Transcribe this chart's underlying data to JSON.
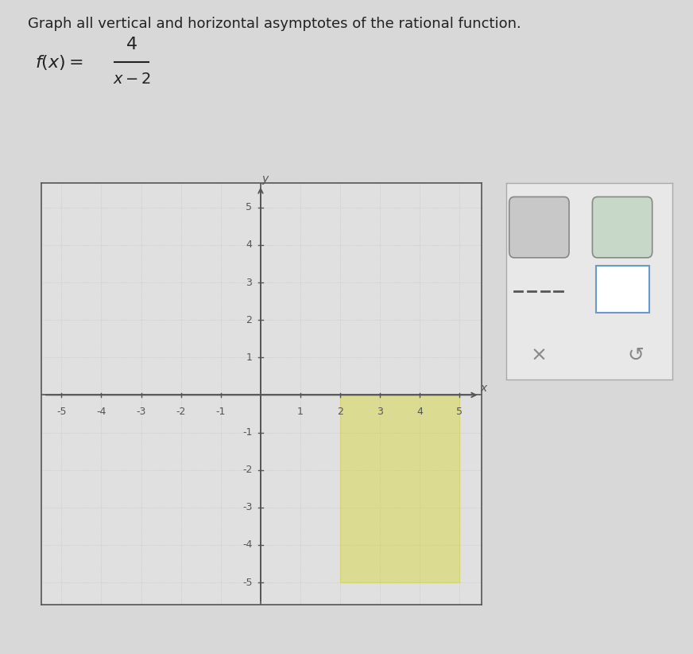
{
  "title_text": "Graph all vertical and horizontal asymptotes of the rational function.",
  "background_color": "#d8d8d8",
  "plot_bg_color": "#e0e0e0",
  "grid_color": "#c0c0c0",
  "axis_color": "#555555",
  "tick_label_color": "#555555",
  "xmin": -5,
  "xmax": 5,
  "ymin": -5,
  "ymax": 5,
  "xticks": [
    -5,
    -4,
    -3,
    -2,
    -1,
    1,
    2,
    3,
    4,
    5
  ],
  "yticks": [
    -5,
    -4,
    -3,
    -2,
    -1,
    1,
    2,
    3,
    4,
    5
  ],
  "highlight_x_start": 2,
  "highlight_x_end": 5,
  "highlight_y_start": -5,
  "highlight_y_end": 0,
  "highlight_color": "#d4d400",
  "highlight_alpha": 0.35,
  "title_fontsize": 13,
  "tick_fontsize": 9,
  "border_color": "#555555",
  "toolbar_bg": "#e8e8e8",
  "toolbar_border": "#aaaaaa"
}
